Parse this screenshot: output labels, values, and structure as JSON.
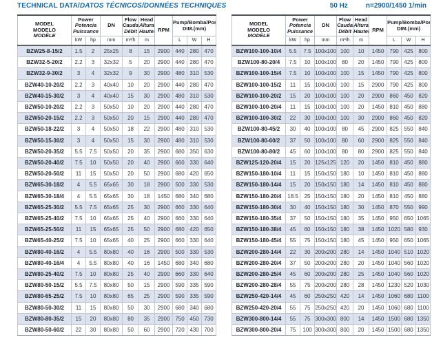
{
  "page": {
    "title_plain": "TECHNICAL DATA/",
    "title_italic": "DATOS TÉCNICOS/DONNÉES TECHNIQUES",
    "frequency": "50 Hz",
    "speed": "n=2900/1450 1/min",
    "accent_color": "#1467a8",
    "row_alt_color": "#dde3ee"
  },
  "table_header": {
    "model": [
      "MODEL",
      "MODELO",
      "MODÈLE"
    ],
    "power": [
      "Power",
      "Potencia",
      "Puissance"
    ],
    "dn": "DN",
    "flow": [
      "Flow",
      "Caudal",
      "Débit"
    ],
    "head": [
      "Head",
      "Altura",
      "Hauteur"
    ],
    "rpm": "RPM",
    "pump_dim": [
      "Pump/Bomba/Pompe",
      "DIM.(mm)"
    ],
    "units": {
      "kw": "kW",
      "hp": "hp",
      "dn": "mm",
      "flow": "m³/h",
      "head": "m",
      "l": "L",
      "w": "W",
      "h": "H"
    }
  },
  "tables": [
    {
      "rows": [
        [
          "BZW25-8-15/2",
          "1.5",
          "2",
          "25x25",
          "8",
          "15",
          "2900",
          "440",
          "280",
          "470"
        ],
        [
          "BZW32-5-20/2",
          "2.2",
          "3",
          "32x32",
          "5",
          "20",
          "2900",
          "440",
          "280",
          "470"
        ],
        [
          "BZW32-9-30/2",
          "3",
          "4",
          "32x32",
          "9",
          "30",
          "2900",
          "480",
          "310",
          "530"
        ],
        [
          "BZW40-10-20/2",
          "2.2",
          "3",
          "40x40",
          "10",
          "20",
          "2900",
          "440",
          "280",
          "470"
        ],
        [
          "BZW40-15-30/2",
          "3",
          "4",
          "40x40",
          "15",
          "30",
          "2900",
          "480",
          "310",
          "530"
        ],
        [
          "BZW50-10-20/2",
          "2.2",
          "3",
          "50x50",
          "10",
          "20",
          "2900",
          "440",
          "280",
          "470"
        ],
        [
          "BZW50-20-15/2",
          "2.2",
          "3",
          "50x50",
          "20",
          "15",
          "2900",
          "440",
          "280",
          "470"
        ],
        [
          "BZW50-18-22/2",
          "3",
          "4",
          "50x50",
          "18",
          "22",
          "2900",
          "480",
          "310",
          "530"
        ],
        [
          "BZW50-15-30/2",
          "3",
          "4",
          "50x50",
          "15",
          "30",
          "2900",
          "480",
          "310",
          "530"
        ],
        [
          "BZW50-20-35/2",
          "5.5",
          "7.5",
          "50x50",
          "20",
          "35",
          "2900",
          "680",
          "350",
          "630"
        ],
        [
          "BZW50-20-40/2",
          "7.5",
          "10",
          "50x50",
          "20",
          "40",
          "2900",
          "660",
          "330",
          "640"
        ],
        [
          "BZW50-20-50/2",
          "11",
          "15",
          "50x50",
          "20",
          "50",
          "2900",
          "680",
          "420",
          "650"
        ],
        [
          "BZW65-30-18/2",
          "4",
          "5.5",
          "65x65",
          "30",
          "18",
          "2900",
          "500",
          "330",
          "530"
        ],
        [
          "BZW65-30-18/4",
          "4",
          "5.5",
          "65x65",
          "30",
          "18",
          "1450",
          "680",
          "340",
          "680"
        ],
        [
          "BZW65-25-30/2",
          "5.5",
          "7.5",
          "65x65",
          "25",
          "30",
          "2900",
          "660",
          "330",
          "640"
        ],
        [
          "BZW65-25-40/2",
          "7.5",
          "10",
          "65x65",
          "25",
          "40",
          "2900",
          "660",
          "330",
          "640"
        ],
        [
          "BZW65-25-50/2",
          "11",
          "15",
          "65x65",
          "25",
          "50",
          "2900",
          "680",
          "420",
          "650"
        ],
        [
          "BZW65-40-25/2",
          "7.5",
          "10",
          "65x65",
          "40",
          "25",
          "2900",
          "660",
          "330",
          "640"
        ],
        [
          "BZW80-40-16/2",
          "4",
          "5.5",
          "80x80",
          "40",
          "16",
          "2900",
          "500",
          "330",
          "530"
        ],
        [
          "BZW80-40-16/4",
          "4",
          "5.5",
          "80x80",
          "40",
          "16",
          "1450",
          "680",
          "340",
          "680"
        ],
        [
          "BZW80-25-40/2",
          "7.5",
          "10",
          "80x80",
          "25",
          "40",
          "2900",
          "660",
          "330",
          "640"
        ],
        [
          "BZW80-50-15/2",
          "5.5",
          "7.5",
          "80x80",
          "50",
          "15",
          "2900",
          "590",
          "335",
          "590"
        ],
        [
          "BZW80-65-25/2",
          "7.5",
          "10",
          "80x80",
          "65",
          "25",
          "2900",
          "590",
          "335",
          "590"
        ],
        [
          "BZW80-50-30/2",
          "11",
          "15",
          "80x80",
          "50",
          "30",
          "2900",
          "680",
          "340",
          "680"
        ],
        [
          "BZW80-80-35/2",
          "15",
          "20",
          "80x80",
          "80",
          "35",
          "2900",
          "750",
          "450",
          "730"
        ],
        [
          "BZW80-50-60/2",
          "22",
          "30",
          "80x80",
          "50",
          "60",
          "2900",
          "720",
          "430",
          "700"
        ]
      ]
    },
    {
      "rows": [
        [
          "BZW100-100-10/4",
          "5.5",
          "7.5",
          "100x100",
          "100",
          "10",
          "1450",
          "790",
          "425",
          "800"
        ],
        [
          "BZW100-80-20/4",
          "7.5",
          "10",
          "100x100",
          "80",
          "20",
          "1450",
          "790",
          "425",
          "800"
        ],
        [
          "BZW100-100-15/4",
          "7.5",
          "10",
          "100x100",
          "100",
          "15",
          "1450",
          "790",
          "425",
          "800"
        ],
        [
          "BZW100-100-15/2",
          "11",
          "15",
          "100x100",
          "100",
          "15",
          "2900",
          "790",
          "425",
          "800"
        ],
        [
          "BZW100-100-20/2",
          "15",
          "20",
          "100x100",
          "100",
          "20",
          "2900",
          "860",
          "450",
          "820"
        ],
        [
          "BZW100-100-20/4",
          "11",
          "15",
          "100x100",
          "100",
          "20",
          "1450",
          "810",
          "450",
          "880"
        ],
        [
          "BZW100-100-30/2",
          "22",
          "30",
          "100x100",
          "100",
          "30",
          "2900",
          "860",
          "450",
          "820"
        ],
        [
          "BZW100-80-45/2",
          "30",
          "40",
          "100x100",
          "80",
          "45",
          "2900",
          "825",
          "550",
          "840"
        ],
        [
          "BZW100-80-60/2",
          "37",
          "50",
          "100x100",
          "80",
          "60",
          "2900",
          "825",
          "550",
          "840"
        ],
        [
          "BZW100-80-80/2",
          "45",
          "60",
          "100x100",
          "80",
          "80",
          "2900",
          "825",
          "550",
          "840"
        ],
        [
          "BZW125-120-20/4",
          "15",
          "20",
          "125x125",
          "120",
          "20",
          "1450",
          "810",
          "450",
          "880"
        ],
        [
          "BZW150-180-10/4",
          "11",
          "15",
          "150x150",
          "180",
          "10",
          "1450",
          "810",
          "450",
          "880"
        ],
        [
          "BZW150-180-14/4",
          "15",
          "20",
          "150x150",
          "180",
          "14",
          "1450",
          "810",
          "450",
          "880"
        ],
        [
          "BZW150-180-20/4",
          "18.5",
          "25",
          "150x150",
          "180",
          "20",
          "1450",
          "810",
          "450",
          "880"
        ],
        [
          "BZW150-180-30/4",
          "30",
          "40",
          "150x150",
          "180",
          "30",
          "1450",
          "870",
          "550",
          "990"
        ],
        [
          "BZW150-180-35/4",
          "37",
          "50",
          "150x150",
          "180",
          "35",
          "1450",
          "950",
          "650",
          "1065"
        ],
        [
          "BZW150-180-38/4",
          "45",
          "60",
          "150x150",
          "180",
          "38",
          "1450",
          "1020",
          "580",
          "930"
        ],
        [
          "BZW150-180-45/4",
          "55",
          "75",
          "150x150",
          "180",
          "45",
          "1450",
          "950",
          "650",
          "1065"
        ],
        [
          "BZW200-280-14/4",
          "22",
          "30",
          "200x200",
          "280",
          "14",
          "1450",
          "1040",
          "510",
          "1020"
        ],
        [
          "BZW200-280-20/4",
          "37",
          "50",
          "200x200",
          "280",
          "20",
          "1450",
          "1040",
          "560",
          "1020"
        ],
        [
          "BZW200-280-25/4",
          "45",
          "60",
          "200x200",
          "280",
          "25",
          "1450",
          "1040",
          "560",
          "1020"
        ],
        [
          "BZW200-280-28/4",
          "55",
          "75",
          "200x200",
          "280",
          "28",
          "1450",
          "1230",
          "520",
          "1030"
        ],
        [
          "BZW250-420-14/4",
          "45",
          "60",
          "250x250",
          "420",
          "14",
          "1450",
          "1060",
          "680",
          "1100"
        ],
        [
          "BZW250-420-20/4",
          "55",
          "75",
          "250x250",
          "420",
          "20",
          "1450",
          "1060",
          "680",
          "1100"
        ],
        [
          "BZW300-800-14/4",
          "55",
          "75",
          "300x300",
          "800",
          "14",
          "1450",
          "1500",
          "680",
          "1350"
        ],
        [
          "BZW300-800-20/4",
          "75",
          "100",
          "300x300",
          "800",
          "20",
          "1450",
          "1500",
          "680",
          "1350"
        ]
      ]
    }
  ]
}
